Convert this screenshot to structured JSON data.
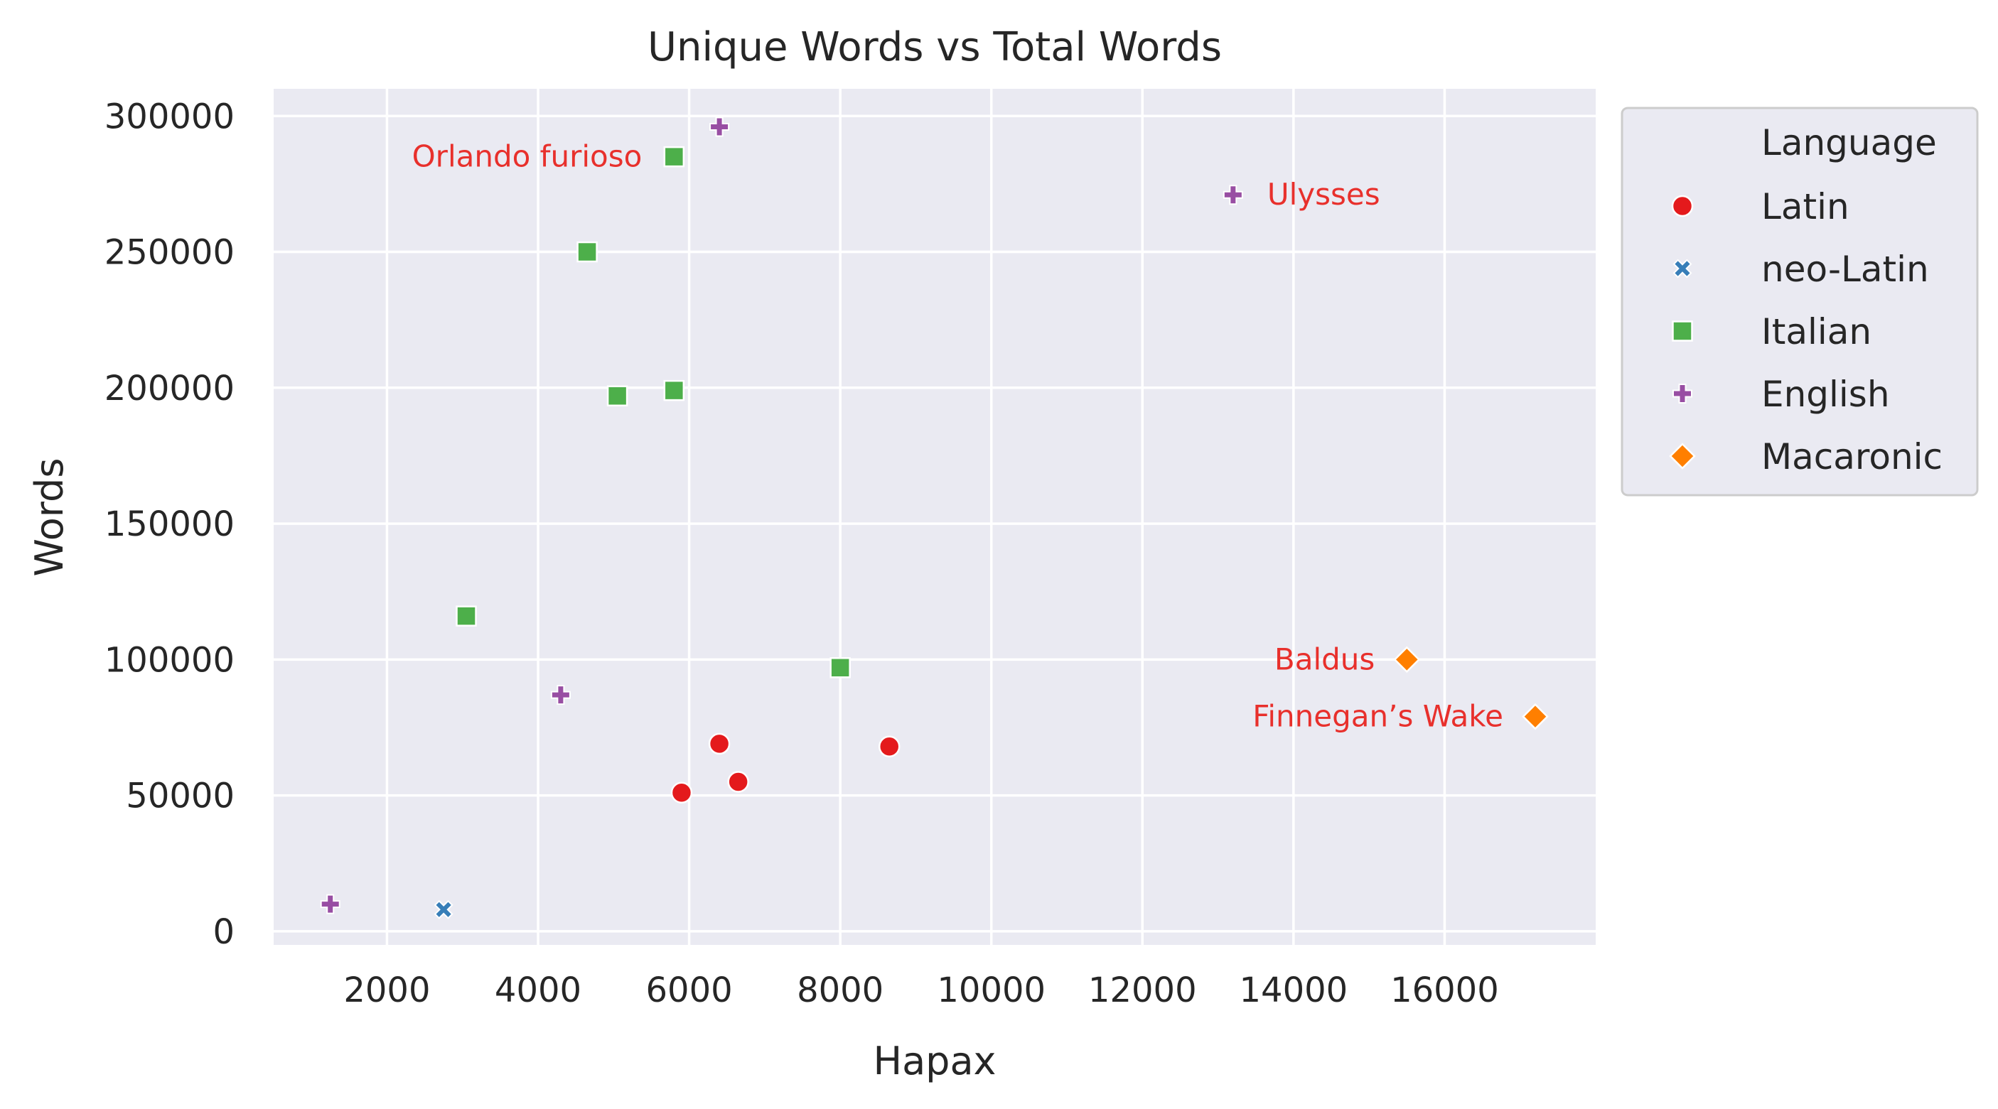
{
  "chart_data": {
    "type": "scatter",
    "title": "Unique Words vs Total Words",
    "xlabel": "Hapax",
    "ylabel": "Words",
    "xlim": [
      500,
      18000
    ],
    "ylim": [
      -5000,
      310000
    ],
    "xticks": [
      2000,
      4000,
      6000,
      8000,
      10000,
      12000,
      14000,
      16000
    ],
    "yticks": [
      0,
      50000,
      100000,
      150000,
      200000,
      250000,
      300000
    ],
    "grid": true,
    "legend": {
      "title": "Language",
      "placement": "outside-top-right"
    },
    "series": [
      {
        "name": "Latin",
        "marker": "circle",
        "color": "#e41a1c",
        "points": [
          {
            "x": 5900,
            "y": 51000
          },
          {
            "x": 6400,
            "y": 69000
          },
          {
            "x": 6650,
            "y": 55000
          },
          {
            "x": 8650,
            "y": 68000
          }
        ]
      },
      {
        "name": "neo-Latin",
        "marker": "x",
        "color": "#377eb8",
        "points": [
          {
            "x": 2750,
            "y": 8000
          }
        ]
      },
      {
        "name": "Italian",
        "marker": "square",
        "color": "#4daf4a",
        "points": [
          {
            "x": 5800,
            "y": 285000
          },
          {
            "x": 4650,
            "y": 250000
          },
          {
            "x": 5800,
            "y": 199000
          },
          {
            "x": 5050,
            "y": 197000
          },
          {
            "x": 3050,
            "y": 116000
          },
          {
            "x": 8000,
            "y": 97000
          }
        ]
      },
      {
        "name": "English",
        "marker": "plus",
        "color": "#984ea3",
        "points": [
          {
            "x": 6400,
            "y": 296000
          },
          {
            "x": 13200,
            "y": 271000
          },
          {
            "x": 4300,
            "y": 87000
          },
          {
            "x": 1250,
            "y": 10000
          }
        ]
      },
      {
        "name": "Macaronic",
        "marker": "diamond",
        "color": "#ff7f00",
        "points": [
          {
            "x": 15500,
            "y": 100000
          },
          {
            "x": 17200,
            "y": 79000
          }
        ]
      }
    ],
    "annotations": [
      {
        "text": "Orlando furioso",
        "x": 5800,
        "y": 285000,
        "side": "left"
      },
      {
        "text": "Ulysses",
        "x": 13200,
        "y": 271000,
        "side": "right"
      },
      {
        "text": "Baldus",
        "x": 15500,
        "y": 100000,
        "side": "left"
      },
      {
        "text": "Finnegan’s Wake",
        "x": 17200,
        "y": 79000,
        "side": "left"
      }
    ],
    "colors": {
      "plot_background": "#eaeaf2",
      "grid": "#ffffff",
      "annotation": "#e8302c",
      "text": "#262626"
    }
  }
}
